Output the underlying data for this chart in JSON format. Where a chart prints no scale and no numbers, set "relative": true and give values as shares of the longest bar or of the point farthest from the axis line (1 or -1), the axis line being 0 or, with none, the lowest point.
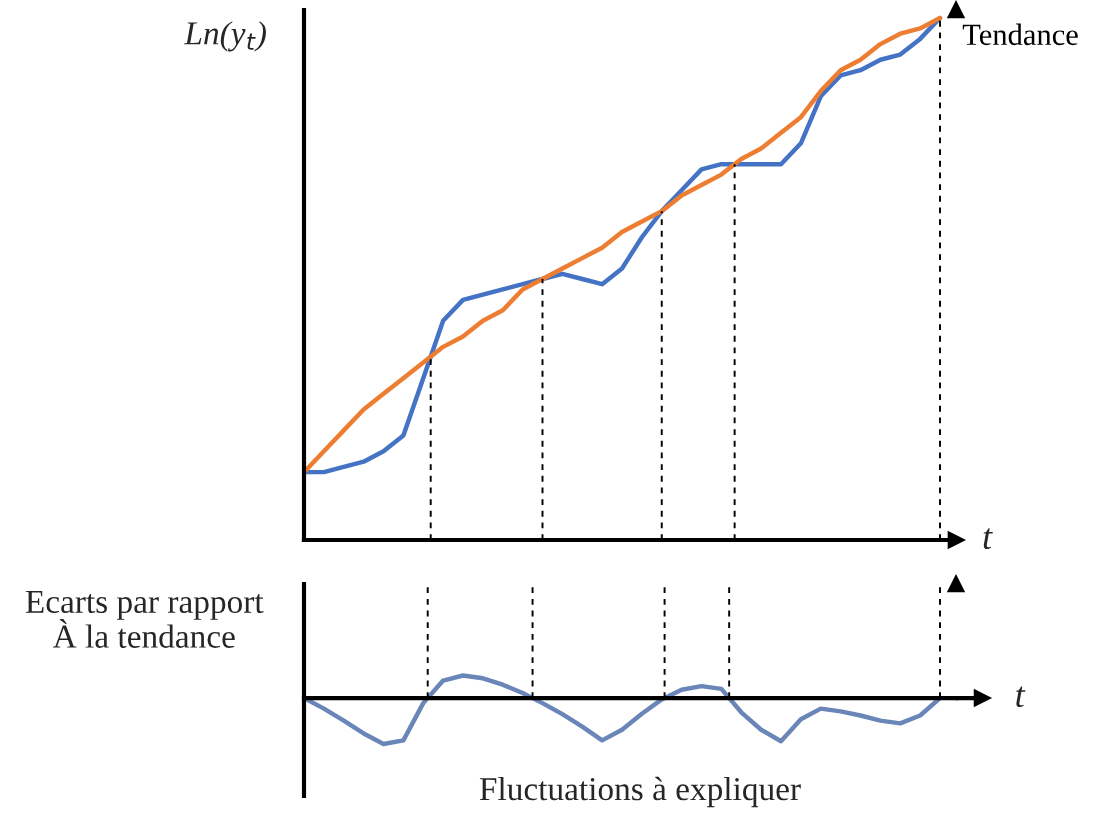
{
  "chart_data": [
    {
      "type": "line",
      "relative": true,
      "ylabel": "Ln(y$_{t}$)",
      "xlabel": "t",
      "categories": [
        null,
        null,
        null,
        null,
        null,
        null,
        null,
        null,
        null,
        null,
        null,
        null,
        null,
        null,
        null,
        null,
        null,
        null,
        null,
        null,
        null,
        null,
        null,
        null,
        null,
        null,
        null,
        null,
        null,
        null,
        null,
        null,
        null
      ],
      "series": [
        {
          "color": "#4472c4",
          "values": [
            0.13,
            0.13,
            0.14,
            0.15,
            0.17,
            0.2,
            0.31,
            0.42,
            0.46,
            0.47,
            0.48,
            0.49,
            0.5,
            0.51,
            0.5,
            0.49,
            0.52,
            0.58,
            0.63,
            0.67,
            0.71,
            0.72,
            0.72,
            0.72,
            0.72,
            0.76,
            0.85,
            0.89,
            0.9,
            0.92,
            0.93,
            0.96,
            1
          ]
        },
        {
          "name": "Tendance",
          "color": "#ed7d31",
          "values": [
            0.13,
            0.17,
            0.21,
            0.25,
            0.28,
            0.31,
            0.34,
            0.37,
            0.39,
            0.42,
            0.44,
            0.48,
            0.5,
            0.52,
            0.54,
            0.56,
            0.59,
            0.61,
            0.63,
            0.66,
            0.68,
            0.7,
            0.73,
            0.75,
            0.78,
            0.81,
            0.86,
            0.9,
            0.92,
            0.95,
            0.97,
            0.98,
            1
          ]
        }
      ]
    },
    {
      "type": "line",
      "relative": true,
      "ylabel": "Ecarts par rapport\nÀ la tendance",
      "xlabel": "t",
      "annotations": [
        "Fluctuations à expliquer"
      ],
      "categories": [
        null,
        null,
        null,
        null,
        null,
        null,
        null,
        null,
        null,
        null,
        null,
        null,
        null,
        null,
        null,
        null,
        null,
        null,
        null,
        null,
        null,
        null,
        null,
        null,
        null,
        null,
        null,
        null,
        null,
        null,
        null,
        null,
        null
      ],
      "series": [
        {
          "color": "#6a86b8",
          "values": [
            0,
            -0.23,
            -0.49,
            -0.77,
            -1,
            -0.92,
            -0.11,
            0.38,
            0.49,
            0.43,
            0.29,
            0.11,
            -0.11,
            -0.35,
            -0.62,
            -0.92,
            -0.69,
            -0.34,
            -0.03,
            0.18,
            0.26,
            0.2,
            -0.31,
            -0.69,
            -0.94,
            -0.46,
            -0.23,
            -0.29,
            -0.38,
            -0.49,
            -0.55,
            -0.38,
            0
          ]
        }
      ]
    }
  ]
}
